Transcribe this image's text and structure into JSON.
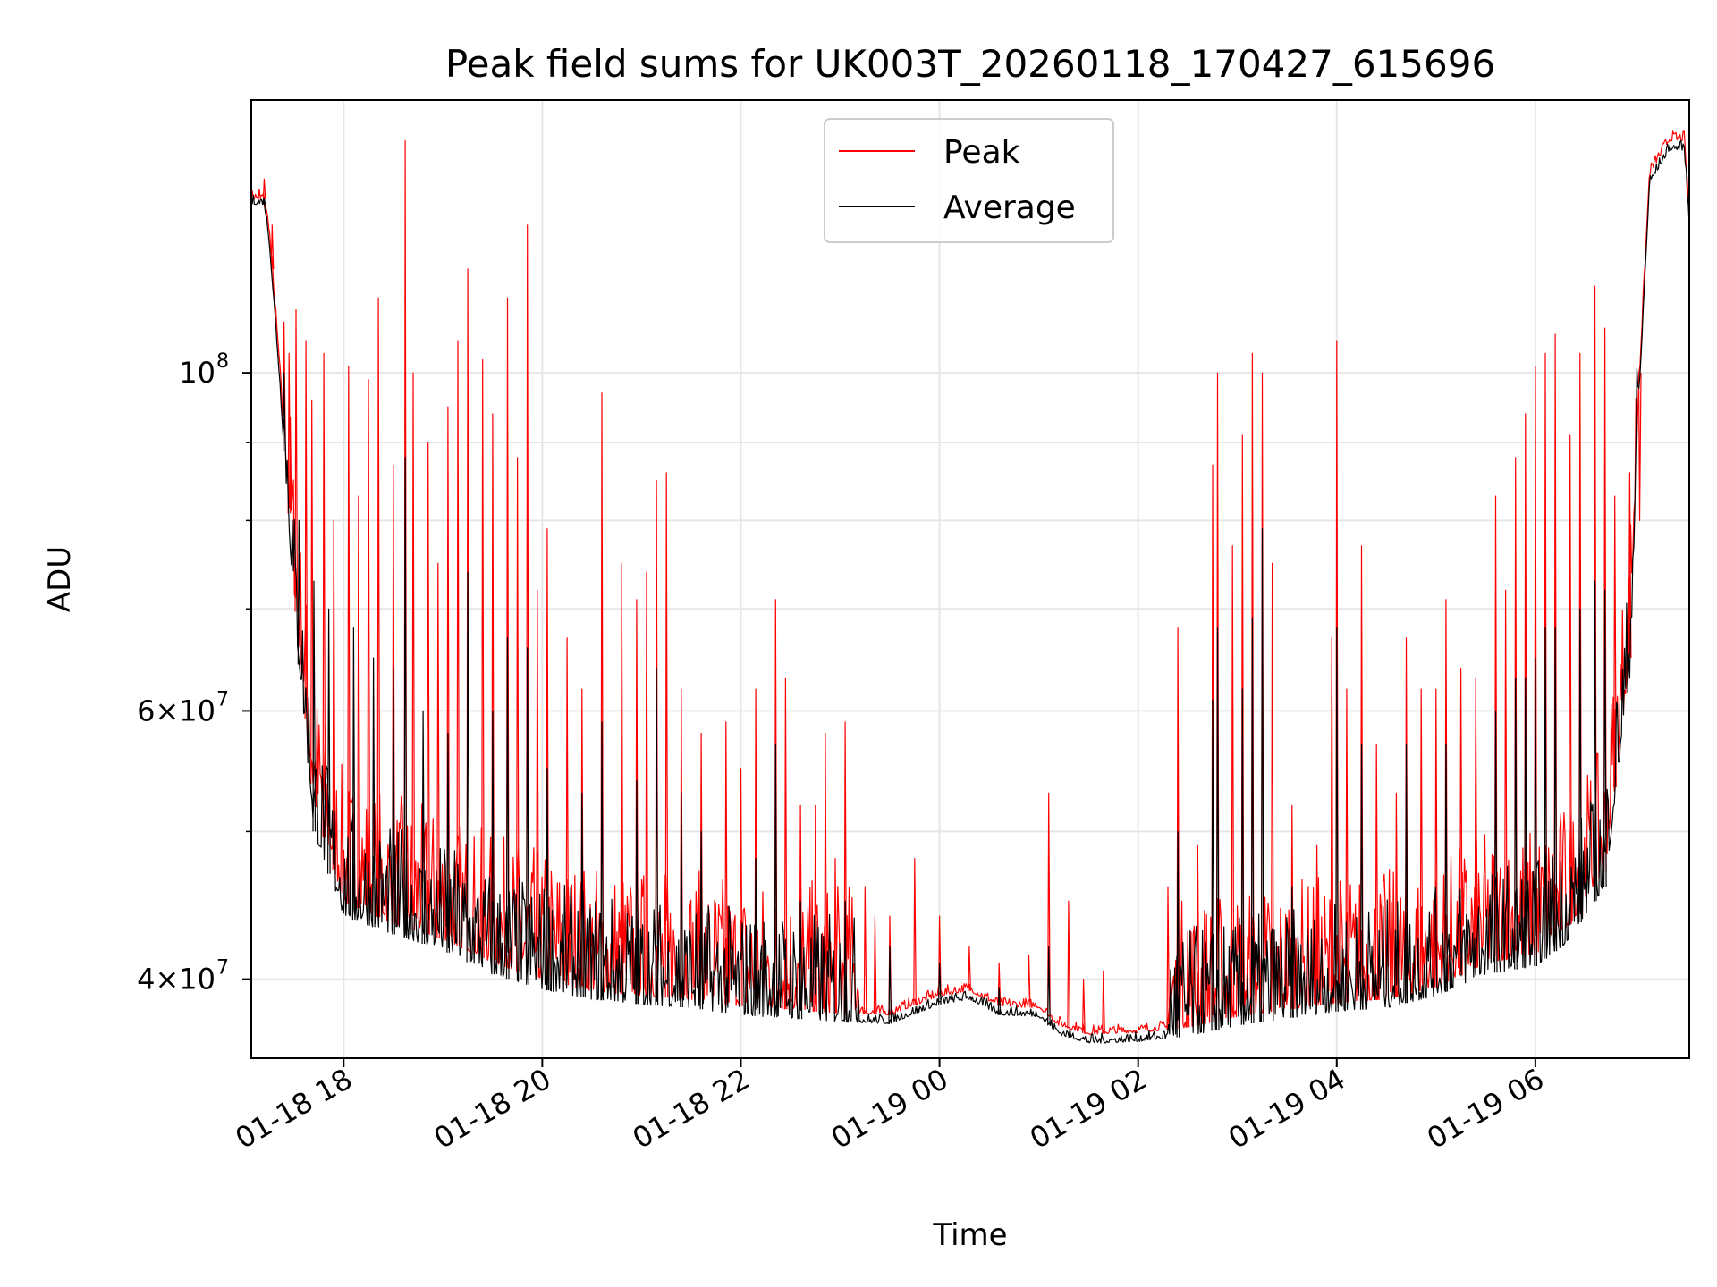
{
  "chart_data": {
    "type": "line",
    "title": "Peak field sums for UK003T_20260118_170427_615696",
    "xlabel": "Time",
    "ylabel": "ADU",
    "yscale": "log",
    "xlim_hours": [
      17.07,
      31.55
    ],
    "ylim": [
      35500000,
      151000000
    ],
    "grid": true,
    "legend_position": "upper-center",
    "x_ticks": [
      {
        "hour": 18,
        "label": "01-18 18"
      },
      {
        "hour": 20,
        "label": "01-18 20"
      },
      {
        "hour": 22,
        "label": "01-18 22"
      },
      {
        "hour": 24,
        "label": "01-19 00"
      },
      {
        "hour": 26,
        "label": "01-19 02"
      },
      {
        "hour": 28,
        "label": "01-19 04"
      },
      {
        "hour": 30,
        "label": "01-19 06"
      }
    ],
    "y_major_ticks": [
      {
        "value": 40000000,
        "mantissa": "4",
        "exponent": "7"
      },
      {
        "value": 60000000,
        "mantissa": "6",
        "exponent": "7"
      },
      {
        "value": 100000000,
        "mantissa": "",
        "exponent": "8"
      }
    ],
    "y_minor_ticks": [
      50000000,
      70000000,
      80000000,
      90000000
    ],
    "x_unit_note": "hours since 2026-01-18 00:00",
    "series": [
      {
        "name": "Peak",
        "color": "#ff0000",
        "baseline": [
          [
            17.07,
            130000000
          ],
          [
            17.2,
            130000000
          ],
          [
            17.25,
            124000000
          ],
          [
            17.35,
            102000000
          ],
          [
            17.5,
            72000000
          ],
          [
            17.7,
            52000000
          ],
          [
            18.0,
            45000000
          ],
          [
            18.5,
            43500000
          ],
          [
            19.0,
            42500000
          ],
          [
            19.5,
            41000000
          ],
          [
            20.0,
            40000000
          ],
          [
            20.5,
            39300000
          ],
          [
            21.0,
            39000000
          ],
          [
            21.5,
            38800000
          ],
          [
            22.0,
            38400000
          ],
          [
            22.5,
            38200000
          ],
          [
            23.0,
            38000000
          ],
          [
            23.5,
            37900000
          ],
          [
            24.0,
            39000000
          ],
          [
            24.3,
            39300000
          ],
          [
            24.6,
            38400000
          ],
          [
            25.0,
            38300000
          ],
          [
            25.2,
            37300000
          ],
          [
            25.5,
            36800000
          ],
          [
            26.0,
            36900000
          ],
          [
            26.5,
            37200000
          ],
          [
            27.0,
            37800000
          ],
          [
            27.5,
            38200000
          ],
          [
            28.0,
            38600000
          ],
          [
            28.5,
            38800000
          ],
          [
            29.0,
            39500000
          ],
          [
            29.5,
            41000000
          ],
          [
            30.0,
            41500000
          ],
          [
            30.3,
            43000000
          ],
          [
            30.7,
            47000000
          ],
          [
            30.95,
            65000000
          ],
          [
            31.05,
            100000000
          ],
          [
            31.15,
            135000000
          ],
          [
            31.35,
            142000000
          ],
          [
            31.5,
            142000000
          ],
          [
            31.55,
            126000000
          ]
        ],
        "spikes": [
          [
            17.15,
            132000000
          ],
          [
            17.2,
            134000000
          ],
          [
            17.28,
            125000000
          ],
          [
            17.4,
            108000000
          ],
          [
            17.45,
            103000000
          ],
          [
            17.52,
            110000000
          ],
          [
            17.62,
            105000000
          ],
          [
            17.68,
            96000000
          ],
          [
            17.8,
            103000000
          ],
          [
            17.9,
            80000000
          ],
          [
            18.05,
            101000000
          ],
          [
            18.15,
            83000000
          ],
          [
            18.25,
            99000000
          ],
          [
            18.35,
            112000000
          ],
          [
            18.5,
            87000000
          ],
          [
            18.62,
            142000000
          ],
          [
            18.7,
            100000000
          ],
          [
            18.85,
            90000000
          ],
          [
            18.95,
            75000000
          ],
          [
            19.05,
            95000000
          ],
          [
            19.15,
            105000000
          ],
          [
            19.25,
            117000000
          ],
          [
            19.4,
            102000000
          ],
          [
            19.5,
            94000000
          ],
          [
            19.65,
            112000000
          ],
          [
            19.75,
            88000000
          ],
          [
            19.85,
            125000000
          ],
          [
            19.95,
            72000000
          ],
          [
            20.05,
            79000000
          ],
          [
            20.25,
            67000000
          ],
          [
            20.4,
            62000000
          ],
          [
            20.6,
            97000000
          ],
          [
            20.8,
            75000000
          ],
          [
            20.95,
            71000000
          ],
          [
            21.05,
            74000000
          ],
          [
            21.15,
            85000000
          ],
          [
            21.25,
            86000000
          ],
          [
            21.4,
            62000000
          ],
          [
            21.6,
            58000000
          ],
          [
            21.85,
            59000000
          ],
          [
            22.0,
            55000000
          ],
          [
            22.15,
            62000000
          ],
          [
            22.35,
            71000000
          ],
          [
            22.45,
            63000000
          ],
          [
            22.6,
            52000000
          ],
          [
            22.75,
            52000000
          ],
          [
            22.85,
            58000000
          ],
          [
            22.95,
            48000000
          ],
          [
            23.05,
            59000000
          ],
          [
            23.25,
            46000000
          ],
          [
            23.35,
            44000000
          ],
          [
            23.5,
            44000000
          ],
          [
            23.75,
            48000000
          ],
          [
            24.0,
            44000000
          ],
          [
            24.3,
            42000000
          ],
          [
            24.6,
            41000000
          ],
          [
            24.9,
            41500000
          ],
          [
            25.1,
            53000000
          ],
          [
            25.3,
            45000000
          ],
          [
            25.45,
            40000000
          ],
          [
            25.65,
            40500000
          ],
          [
            26.3,
            46000000
          ],
          [
            26.4,
            68000000
          ],
          [
            26.5,
            43000000
          ],
          [
            26.6,
            49000000
          ],
          [
            26.75,
            87000000
          ],
          [
            26.8,
            100000000
          ],
          [
            26.95,
            77000000
          ],
          [
            27.05,
            91000000
          ],
          [
            27.15,
            103000000
          ],
          [
            27.25,
            100000000
          ],
          [
            27.35,
            75000000
          ],
          [
            27.55,
            52000000
          ],
          [
            27.8,
            49000000
          ],
          [
            27.95,
            67000000
          ],
          [
            28.0,
            105000000
          ],
          [
            28.1,
            62000000
          ],
          [
            28.25,
            77000000
          ],
          [
            28.4,
            57000000
          ],
          [
            28.6,
            53000000
          ],
          [
            28.7,
            67000000
          ],
          [
            28.85,
            62000000
          ],
          [
            29.0,
            62000000
          ],
          [
            29.1,
            71000000
          ],
          [
            29.25,
            64000000
          ],
          [
            29.4,
            63000000
          ],
          [
            29.6,
            83000000
          ],
          [
            29.7,
            72000000
          ],
          [
            29.8,
            88000000
          ],
          [
            29.9,
            94000000
          ],
          [
            30.0,
            101000000
          ],
          [
            30.1,
            103000000
          ],
          [
            30.2,
            106000000
          ],
          [
            30.35,
            91000000
          ],
          [
            30.45,
            103000000
          ],
          [
            30.6,
            114000000
          ],
          [
            30.7,
            107000000
          ],
          [
            30.8,
            83000000
          ],
          [
            30.95,
            86000000
          ],
          [
            31.05,
            80000000
          ]
        ]
      },
      {
        "name": "Average",
        "color": "#000000",
        "baseline": [
          [
            17.07,
            129000000
          ],
          [
            17.2,
            129000000
          ],
          [
            17.25,
            122000000
          ],
          [
            17.35,
            100000000
          ],
          [
            17.5,
            70000000
          ],
          [
            17.7,
            50000000
          ],
          [
            18.0,
            44000000
          ],
          [
            18.5,
            42800000
          ],
          [
            19.0,
            41800000
          ],
          [
            19.5,
            40300000
          ],
          [
            20.0,
            39400000
          ],
          [
            20.5,
            38800000
          ],
          [
            21.0,
            38500000
          ],
          [
            21.5,
            38300000
          ],
          [
            22.0,
            37900000
          ],
          [
            22.5,
            37700000
          ],
          [
            23.0,
            37500000
          ],
          [
            23.5,
            37400000
          ],
          [
            24.0,
            38500000
          ],
          [
            24.3,
            38800000
          ],
          [
            24.6,
            37900000
          ],
          [
            25.0,
            37800000
          ],
          [
            25.2,
            36800000
          ],
          [
            25.5,
            36300000
          ],
          [
            26.0,
            36400000
          ],
          [
            26.5,
            36700000
          ],
          [
            27.0,
            37300000
          ],
          [
            27.5,
            37700000
          ],
          [
            28.0,
            38100000
          ],
          [
            28.5,
            38300000
          ],
          [
            29.0,
            39000000
          ],
          [
            29.5,
            40300000
          ],
          [
            30.0,
            40800000
          ],
          [
            30.3,
            42200000
          ],
          [
            30.7,
            46000000
          ],
          [
            30.95,
            63000000
          ],
          [
            31.05,
            98000000
          ],
          [
            31.15,
            133000000
          ],
          [
            31.35,
            140000000
          ],
          [
            31.5,
            140000000
          ],
          [
            31.55,
            125000000
          ]
        ],
        "spikes": [
          [
            17.2,
            130000000
          ],
          [
            17.4,
            100000000
          ],
          [
            17.55,
            80000000
          ],
          [
            17.7,
            73000000
          ],
          [
            17.85,
            70000000
          ],
          [
            18.1,
            68000000
          ],
          [
            18.3,
            65000000
          ],
          [
            18.5,
            64000000
          ],
          [
            18.62,
            88000000
          ],
          [
            18.8,
            60000000
          ],
          [
            19.05,
            58000000
          ],
          [
            19.25,
            74000000
          ],
          [
            19.5,
            60000000
          ],
          [
            19.65,
            67000000
          ],
          [
            19.85,
            66000000
          ],
          [
            20.05,
            55000000
          ],
          [
            20.4,
            53000000
          ],
          [
            20.6,
            59000000
          ],
          [
            20.95,
            54000000
          ],
          [
            21.15,
            64000000
          ],
          [
            21.4,
            53000000
          ],
          [
            21.6,
            50000000
          ],
          [
            22.15,
            48000000
          ],
          [
            22.35,
            57000000
          ],
          [
            22.6,
            45000000
          ],
          [
            23.05,
            45000000
          ],
          [
            23.5,
            42000000
          ],
          [
            24.0,
            41000000
          ],
          [
            24.6,
            39500000
          ],
          [
            25.1,
            42000000
          ],
          [
            26.4,
            50000000
          ],
          [
            26.75,
            61000000
          ],
          [
            26.8,
            68000000
          ],
          [
            27.05,
            62000000
          ],
          [
            27.15,
            69000000
          ],
          [
            27.25,
            79000000
          ],
          [
            27.55,
            46000000
          ],
          [
            28.0,
            68000000
          ],
          [
            28.25,
            57000000
          ],
          [
            28.7,
            57000000
          ],
          [
            29.1,
            57000000
          ],
          [
            29.6,
            60000000
          ],
          [
            29.8,
            63000000
          ],
          [
            29.9,
            63000000
          ],
          [
            30.0,
            65000000
          ],
          [
            30.1,
            68000000
          ],
          [
            30.2,
            68000000
          ],
          [
            30.45,
            70000000
          ],
          [
            30.6,
            73000000
          ],
          [
            30.7,
            72000000
          ]
        ]
      }
    ]
  }
}
